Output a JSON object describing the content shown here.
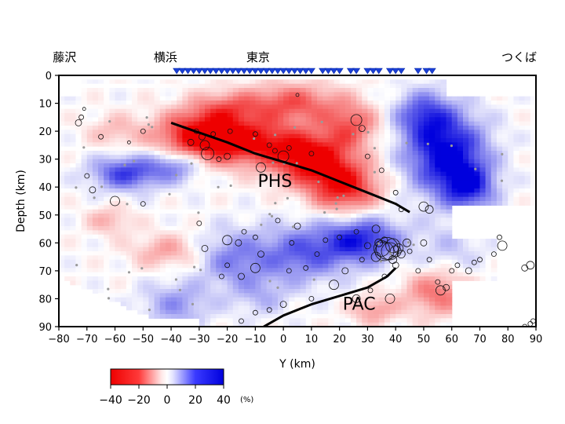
{
  "chart_data": {
    "type": "heatmap",
    "xlabel": "Y (km)",
    "ylabel": "Depth (km)",
    "xlim": [
      -80,
      90
    ],
    "ylim": [
      0,
      90
    ],
    "y_inverted": true,
    "x_ticks": [
      -80,
      -70,
      -60,
      -50,
      -40,
      -30,
      -20,
      -10,
      0,
      10,
      20,
      30,
      40,
      50,
      60,
      70,
      80,
      90
    ],
    "y_ticks": [
      0,
      10,
      20,
      30,
      40,
      50,
      60,
      70,
      80,
      90
    ],
    "places": [
      {
        "name": "藤沢",
        "x": -78
      },
      {
        "name": "横浜",
        "x": -42
      },
      {
        "name": "東京",
        "x": -9
      },
      {
        "name": "つくば",
        "x": 84
      }
    ],
    "stations_x": [
      -38,
      -36,
      -34,
      -32,
      -30,
      -28,
      -26,
      -24,
      -22,
      -20,
      -18,
      -16,
      -14,
      -12,
      -10,
      -8,
      -6,
      -4,
      -2,
      0,
      2,
      4,
      6,
      8,
      10,
      14,
      16,
      18,
      20,
      24,
      26,
      30,
      32,
      34,
      38,
      40,
      42,
      48,
      51,
      53
    ],
    "labels": [
      {
        "text": "PHS",
        "x": -3,
        "y": 40
      },
      {
        "text": "PAC",
        "x": 27,
        "y": 84
      }
    ],
    "colorbar": {
      "ticks": [
        -40,
        -20,
        0,
        20,
        40
      ],
      "unit": "(%)",
      "range": [
        -40,
        40
      ],
      "neg_color": "#ee0000",
      "pos_color": "#0000dd"
    },
    "boundaries": [
      {
        "name": "PHS",
        "points": [
          [
            -40,
            17
          ],
          [
            -30,
            20.5
          ],
          [
            -20,
            24
          ],
          [
            -10,
            28
          ],
          [
            0,
            31
          ],
          [
            10,
            34
          ],
          [
            20,
            38
          ],
          [
            30,
            42
          ],
          [
            40,
            46
          ],
          [
            45,
            49
          ]
        ]
      },
      {
        "name": "PAC",
        "points": [
          [
            -7,
            90
          ],
          [
            0,
            86
          ],
          [
            10,
            82
          ],
          [
            20,
            79
          ],
          [
            30,
            76
          ],
          [
            37,
            72
          ],
          [
            40,
            69
          ]
        ]
      }
    ],
    "anomalies": [
      {
        "x": -30,
        "y": 22,
        "sx": 15,
        "sy": 9,
        "v": -42
      },
      {
        "x": -10,
        "y": 24,
        "sx": 16,
        "sy": 8,
        "v": -34
      },
      {
        "x": 10,
        "y": 30,
        "sx": 13,
        "sy": 9,
        "v": -42
      },
      {
        "x": 22,
        "y": 40,
        "sx": 12,
        "sy": 9,
        "v": -36
      },
      {
        "x": 3,
        "y": 10,
        "sx": 17,
        "sy": 7,
        "v": -26
      },
      {
        "x": 24,
        "y": 18,
        "sx": 10,
        "sy": 8,
        "v": -24
      },
      {
        "x": -60,
        "y": 20,
        "sx": 10,
        "sy": 6,
        "v": -10
      },
      {
        "x": -20,
        "y": 12,
        "sx": 12,
        "sy": 6,
        "v": -18
      },
      {
        "x": 58,
        "y": 28,
        "sx": 14,
        "sy": 14,
        "v": 42
      },
      {
        "x": 50,
        "y": 14,
        "sx": 10,
        "sy": 8,
        "v": 24
      },
      {
        "x": 66,
        "y": 40,
        "sx": 9,
        "sy": 8,
        "v": 30
      },
      {
        "x": -56,
        "y": 35,
        "sx": 12,
        "sy": 6,
        "v": 30
      },
      {
        "x": -38,
        "y": 32,
        "sx": 10,
        "sy": 6,
        "v": 22
      },
      {
        "x": 28,
        "y": 59,
        "sx": 14,
        "sy": 8,
        "v": 34
      },
      {
        "x": 6,
        "y": 64,
        "sx": 16,
        "sy": 10,
        "v": 24
      },
      {
        "x": -18,
        "y": 66,
        "sx": 12,
        "sy": 10,
        "v": 18
      },
      {
        "x": -38,
        "y": 82,
        "sx": 12,
        "sy": 8,
        "v": 16
      },
      {
        "x": -8,
        "y": 79,
        "sx": 10,
        "sy": 7,
        "v": 10
      },
      {
        "x": -42,
        "y": 63,
        "sx": 12,
        "sy": 6,
        "v": -14
      },
      {
        "x": 55,
        "y": 78,
        "sx": 12,
        "sy": 8,
        "v": -22
      },
      {
        "x": 32,
        "y": 84,
        "sx": 8,
        "sy": 5,
        "v": -16
      },
      {
        "x": -62,
        "y": 52,
        "sx": 8,
        "sy": 5,
        "v": -12
      },
      {
        "x": 60,
        "y": 62,
        "sx": 12,
        "sy": 10,
        "v": 8
      }
    ],
    "events": [
      [
        -73,
        17,
        4
      ],
      [
        -72,
        15,
        3
      ],
      [
        -71,
        12,
        2
      ],
      [
        -65,
        22,
        3
      ],
      [
        -55,
        24,
        2
      ],
      [
        -50,
        20,
        3
      ],
      [
        -70,
        36,
        3
      ],
      [
        -68,
        41,
        4
      ],
      [
        -60,
        45,
        6
      ],
      [
        -50,
        46,
        3
      ],
      [
        -31,
        20,
        3
      ],
      [
        -29,
        22,
        4
      ],
      [
        -28,
        25,
        6
      ],
      [
        -27,
        28,
        8
      ],
      [
        -25,
        21,
        3
      ],
      [
        -33,
        24,
        4
      ],
      [
        -20,
        29,
        4
      ],
      [
        -19,
        20,
        3
      ],
      [
        -23,
        30,
        3
      ],
      [
        -10,
        21,
        3
      ],
      [
        -8,
        33,
        6
      ],
      [
        -5,
        25,
        3
      ],
      [
        -3,
        27,
        3
      ],
      [
        0,
        29,
        7
      ],
      [
        2,
        26,
        3
      ],
      [
        5,
        7,
        2
      ],
      [
        10,
        28,
        3
      ],
      [
        26,
        16,
        7
      ],
      [
        28,
        19,
        4
      ],
      [
        30,
        29,
        3
      ],
      [
        35,
        34,
        3
      ],
      [
        40,
        42,
        3
      ],
      [
        42,
        48,
        3
      ],
      [
        50,
        47,
        6
      ],
      [
        52,
        48,
        5
      ],
      [
        -30,
        53,
        3
      ],
      [
        -20,
        59,
        6
      ],
      [
        -16,
        60,
        4
      ],
      [
        -10,
        58,
        3
      ],
      [
        -14,
        56,
        3
      ],
      [
        -28,
        62,
        4
      ],
      [
        -20,
        68,
        3
      ],
      [
        -15,
        72,
        4
      ],
      [
        -22,
        72,
        3
      ],
      [
        -8,
        64,
        4
      ],
      [
        -2,
        52,
        3
      ],
      [
        3,
        60,
        3
      ],
      [
        5,
        54,
        4
      ],
      [
        -10,
        69,
        6
      ],
      [
        2,
        70,
        3
      ],
      [
        8,
        69,
        3
      ],
      [
        12,
        64,
        3
      ],
      [
        15,
        59,
        3
      ],
      [
        20,
        58,
        3
      ],
      [
        26,
        56,
        3
      ],
      [
        30,
        61,
        4
      ],
      [
        33,
        55,
        5
      ],
      [
        28,
        66,
        3
      ],
      [
        22,
        70,
        4
      ],
      [
        18,
        75,
        6
      ],
      [
        10,
        80,
        3
      ],
      [
        0,
        82,
        4
      ],
      [
        -5,
        84,
        3
      ],
      [
        -15,
        88,
        3
      ],
      [
        -10,
        85,
        3
      ],
      [
        26,
        80,
        5
      ],
      [
        31,
        77,
        3
      ],
      [
        38,
        80,
        6
      ],
      [
        36,
        72,
        3
      ],
      [
        35,
        62,
        10
      ],
      [
        36,
        63,
        12
      ],
      [
        37,
        62,
        14
      ],
      [
        38,
        63,
        11
      ],
      [
        39,
        61,
        9
      ],
      [
        40,
        63,
        7
      ],
      [
        41,
        62,
        6
      ],
      [
        42,
        64,
        5
      ],
      [
        33,
        65,
        6
      ],
      [
        34,
        60,
        5
      ],
      [
        36,
        59,
        4
      ],
      [
        39,
        66,
        5
      ],
      [
        40,
        68,
        4
      ],
      [
        44,
        60,
        5
      ],
      [
        45,
        63,
        3
      ],
      [
        50,
        60,
        4
      ],
      [
        52,
        66,
        3
      ],
      [
        48,
        70,
        3
      ],
      [
        55,
        74,
        3
      ],
      [
        56,
        77,
        6
      ],
      [
        58,
        76,
        4
      ],
      [
        60,
        70,
        3
      ],
      [
        62,
        68,
        3
      ],
      [
        66,
        70,
        4
      ],
      [
        68,
        67,
        3
      ],
      [
        70,
        66,
        3
      ],
      [
        75,
        64,
        3
      ],
      [
        77,
        58,
        3
      ],
      [
        78,
        61,
        6
      ],
      [
        86,
        69,
        4
      ],
      [
        88,
        68,
        5
      ],
      [
        86,
        90,
        3
      ],
      [
        88,
        89,
        3
      ],
      [
        89,
        88,
        3
      ]
    ]
  }
}
